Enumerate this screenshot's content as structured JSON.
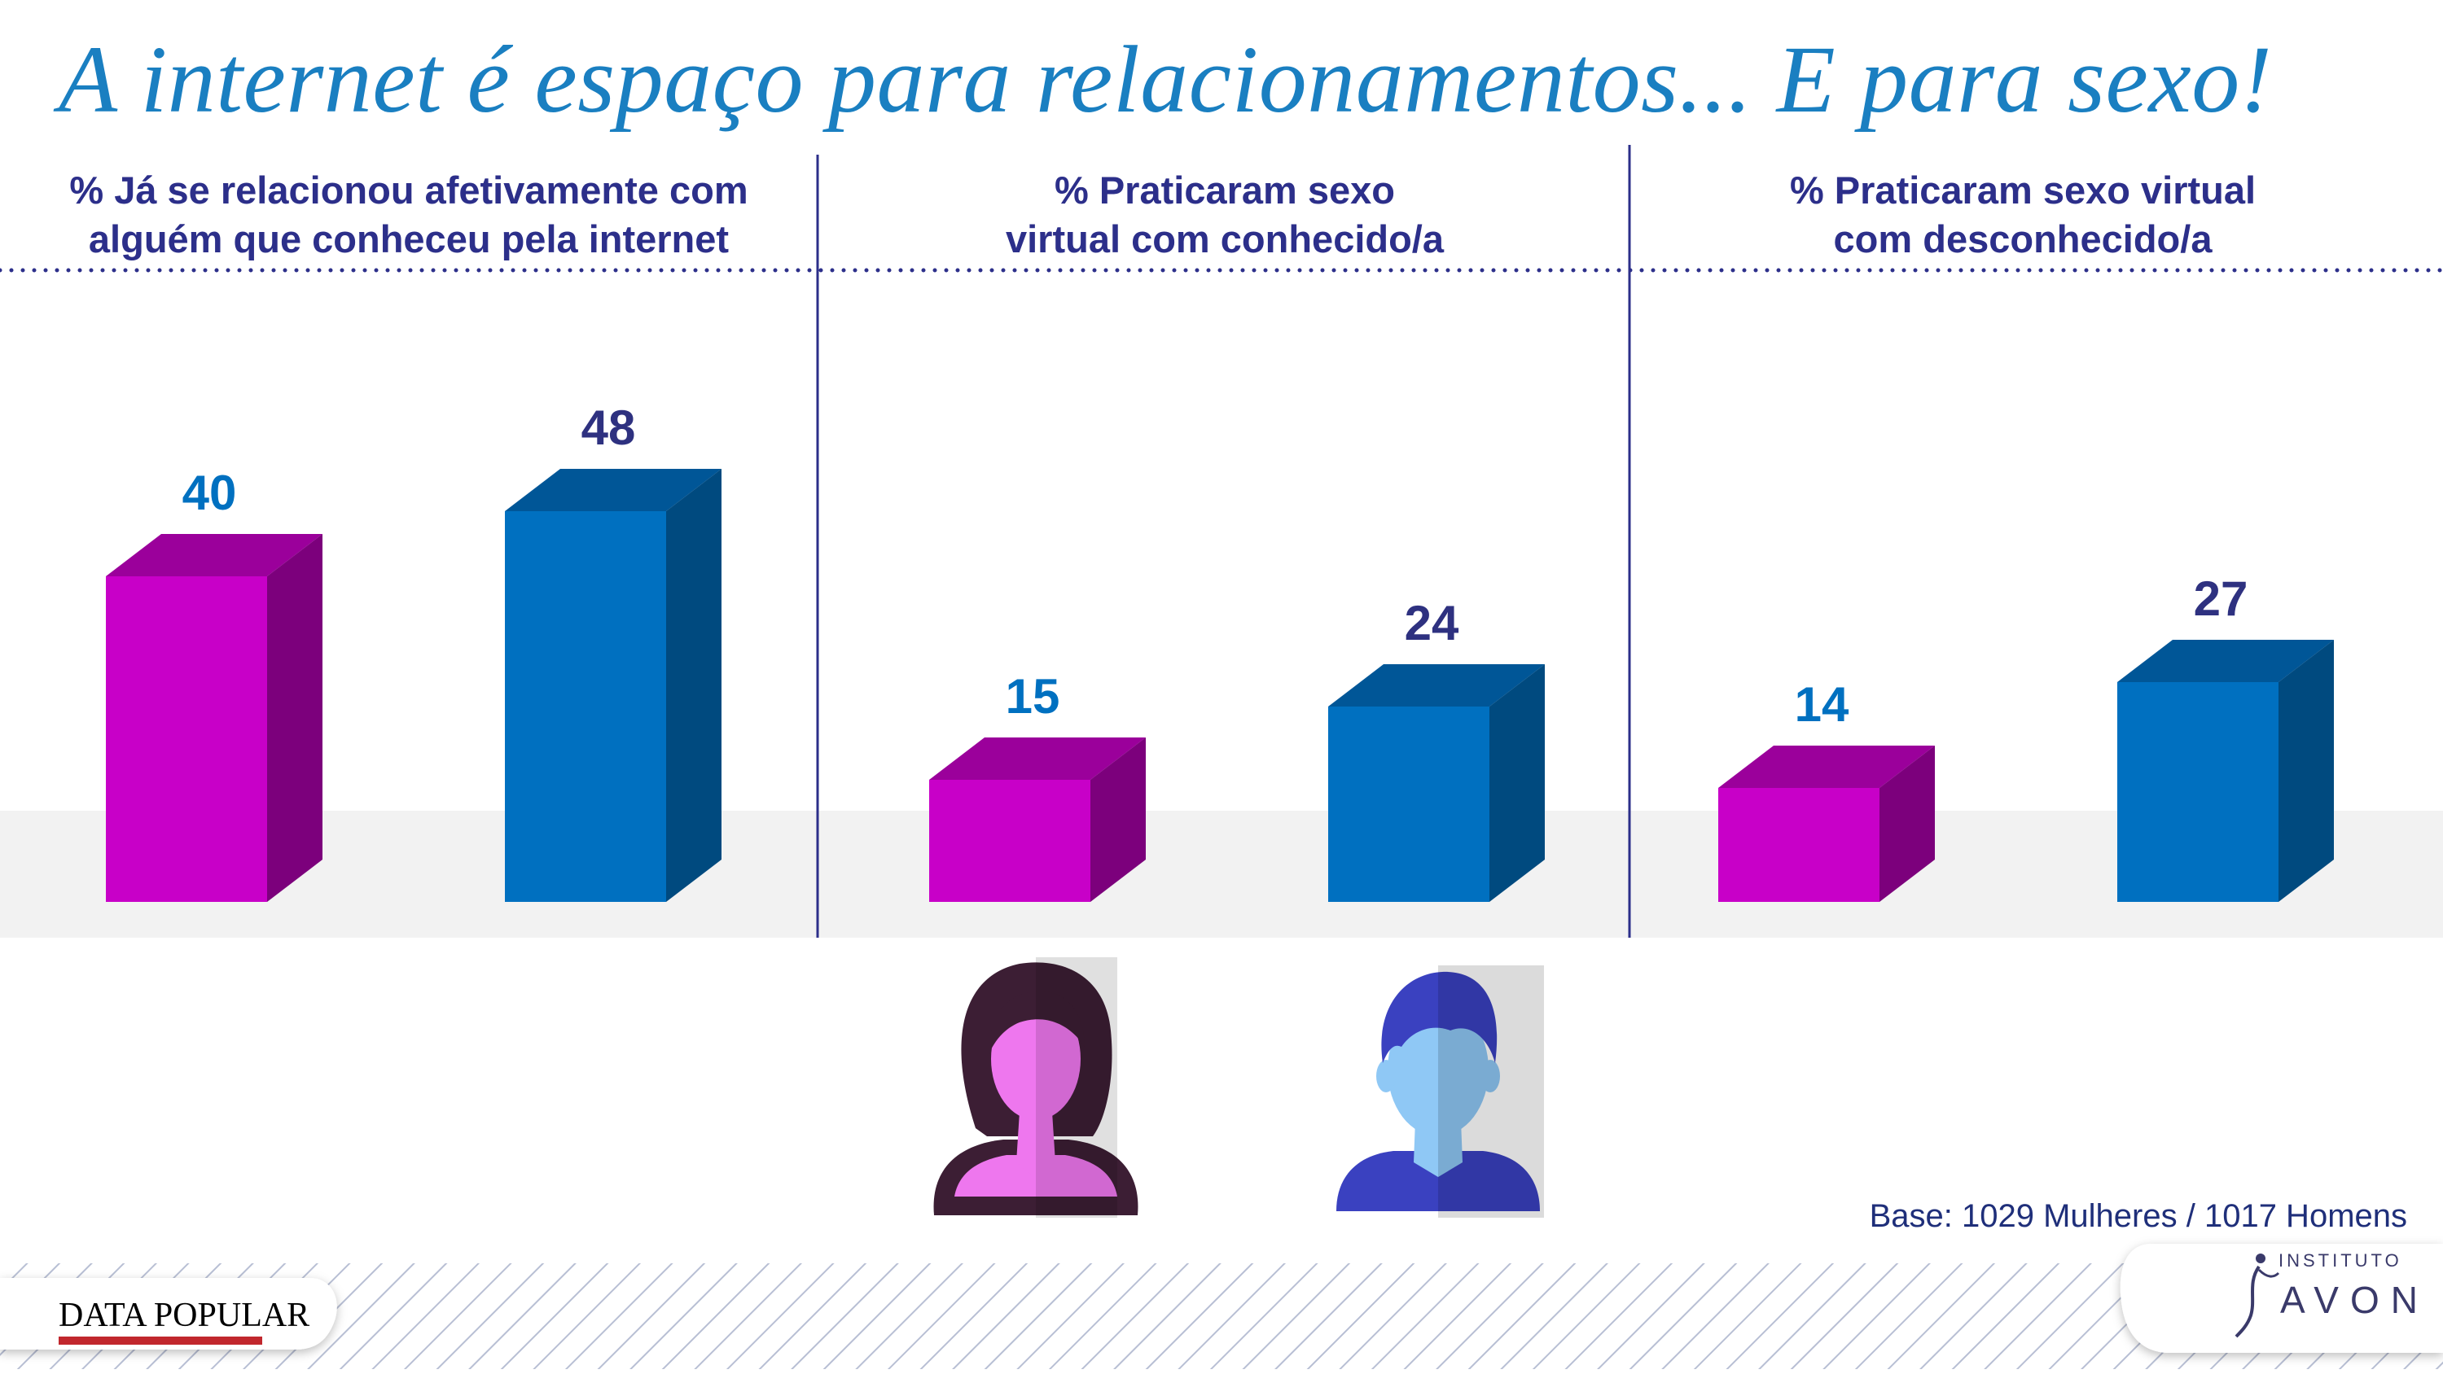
{
  "title": "A internet é espaço para relacionamentos...  E para sexo!",
  "colors": {
    "women_front": "#c800c8",
    "women_top": "#9b009b",
    "women_side": "#7c007c",
    "men_front": "#0070c0",
    "men_top": "#005697",
    "men_side": "#004a7f",
    "women_label": "#0070c0",
    "men_label": "#2e3180",
    "divider": "#2c2f8a",
    "band": "#f2f2f2"
  },
  "icons": {
    "women": "woman-avatar-icon",
    "men": "man-avatar-icon"
  },
  "chart_data": [
    {
      "type": "bar",
      "title_lines": [
        "% Já se relacionou afetivamente com",
        "alguém que conheceu pela internet"
      ],
      "categories": [
        "Mulheres",
        "Homens"
      ],
      "values": [
        40,
        48
      ]
    },
    {
      "type": "bar",
      "title_lines": [
        "% Praticaram sexo",
        "virtual com conhecido/a"
      ],
      "categories": [
        "Mulheres",
        "Homens"
      ],
      "values": [
        15,
        24
      ]
    },
    {
      "type": "bar",
      "title_lines": [
        "% Praticaram sexo virtual",
        "com desconhecido/a"
      ],
      "categories": [
        "Mulheres",
        "Homens"
      ],
      "values": [
        14,
        27
      ]
    }
  ],
  "base_note": "Base: 1029 Mulheres / 1017 Homens",
  "footer": {
    "left_logo": "DATA POPULAR",
    "right_logo_top": "INSTITUTO",
    "right_logo_main": "AVON"
  }
}
